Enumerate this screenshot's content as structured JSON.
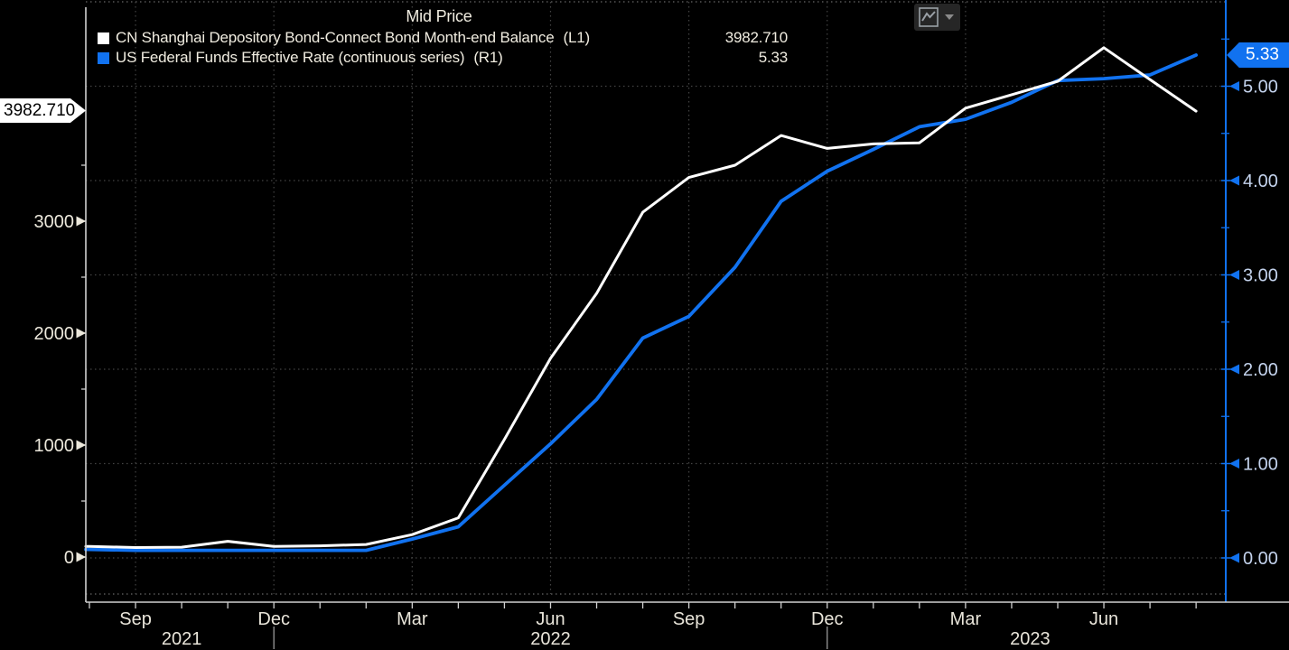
{
  "header": {
    "title": "Mid Price",
    "legend": [
      {
        "label": "CN Shanghai Depository Bond-Connect Bond Month-end Balance",
        "axis": "(L1)",
        "value": "3982.710",
        "color": "#ffffff"
      },
      {
        "label": "US Federal Funds Effective Rate (continuous series)",
        "axis": "(R1)",
        "value": "5.33",
        "color": "#1172f0"
      }
    ]
  },
  "toolbar": {
    "chart_type_icon": "line-chart-icon",
    "dropdown_icon": "caret-down-icon"
  },
  "tags": {
    "left_value": "3982.710",
    "right_value": "5.33"
  },
  "colors": {
    "background": "#000000",
    "series_white": "#ffffff",
    "series_blue": "#1172f0",
    "left_label": "#ece8dc",
    "right_label": "#c3d2ec",
    "x_label": "#e9e5da",
    "grid": "#434343",
    "border_dotted": "#666666",
    "axis_line": "#cfcfcf",
    "year_separator": "#9a9a9a",
    "icon_glyph": "#9aa0a6",
    "icon_bg": "#262626",
    "tag_left_bg": "#ffffff",
    "tag_right_bg": "#1172f0"
  },
  "chart_data": {
    "type": "line",
    "title": "Mid Price",
    "grid": "dotted",
    "legend_position": "top",
    "x": [
      "Aug 2021",
      "Sep 2021",
      "Oct 2021",
      "Nov 2021",
      "Dec 2021",
      "Jan 2022",
      "Feb 2022",
      "Mar 2022",
      "Apr 2022",
      "May 2022",
      "Jun 2022",
      "Jul 2022",
      "Aug 2022",
      "Sep 2022",
      "Oct 2022",
      "Nov 2022",
      "Dec 2022",
      "Jan 2023",
      "Feb 2023",
      "Mar 2023",
      "Apr 2023",
      "May 2023",
      "Jun 2023",
      "Jul 2023",
      "Aug 2023"
    ],
    "series": [
      {
        "name": "CN Shanghai Depository Bond-Connect Bond Month-end Balance",
        "axis": "L1",
        "color": "#ffffff",
        "values": [
          95,
          85,
          88,
          140,
          95,
          100,
          112,
          200,
          350,
          1050,
          1775,
          2355,
          3080,
          3390,
          3500,
          3765,
          3650,
          3690,
          3700,
          4010,
          4130,
          4250,
          4550,
          4265,
          3982.71
        ]
      },
      {
        "name": "US Federal Funds Effective Rate (continuous series)",
        "axis": "R1",
        "color": "#1172f0",
        "values": [
          0.09,
          0.08,
          0.08,
          0.08,
          0.08,
          0.08,
          0.08,
          0.2,
          0.33,
          0.77,
          1.21,
          1.68,
          2.33,
          2.56,
          3.08,
          3.78,
          4.1,
          4.33,
          4.57,
          4.65,
          4.83,
          5.06,
          5.08,
          5.12,
          5.33
        ]
      }
    ],
    "left_axis": {
      "tick_labels": [
        "0",
        "1000",
        "2000",
        "3000"
      ],
      "tick_values": [
        0,
        1000,
        2000,
        3000
      ],
      "minor_tick_values": [
        500,
        1500,
        2500,
        3500
      ],
      "last_value_tag": "3982.710"
    },
    "right_axis": {
      "tick_labels": [
        "0.00",
        "1.00",
        "2.00",
        "3.00",
        "4.00",
        "5.00"
      ],
      "tick_values": [
        0,
        1,
        2,
        3,
        4,
        5
      ],
      "minor_tick_values": [
        0.5,
        1.5,
        2.5,
        3.5,
        4.5,
        5.5
      ],
      "last_value_tag": "5.33"
    },
    "x_axis": {
      "labeled_ticks": [
        {
          "label": "Sep",
          "month_index": 1
        },
        {
          "label": "Dec",
          "month_index": 4
        },
        {
          "label": "Mar",
          "month_index": 7
        },
        {
          "label": "Jun",
          "month_index": 10
        },
        {
          "label": "Sep",
          "month_index": 13
        },
        {
          "label": "Dec",
          "month_index": 16
        },
        {
          "label": "Mar",
          "month_index": 19
        },
        {
          "label": "Jun",
          "month_index": 22
        }
      ],
      "year_labels": [
        {
          "label": "2021",
          "month_index": 2.0
        },
        {
          "label": "2022",
          "month_index": 10.0
        },
        {
          "label": "2023",
          "month_index": 20.4
        }
      ],
      "year_separator_indices": [
        4,
        16
      ]
    }
  }
}
